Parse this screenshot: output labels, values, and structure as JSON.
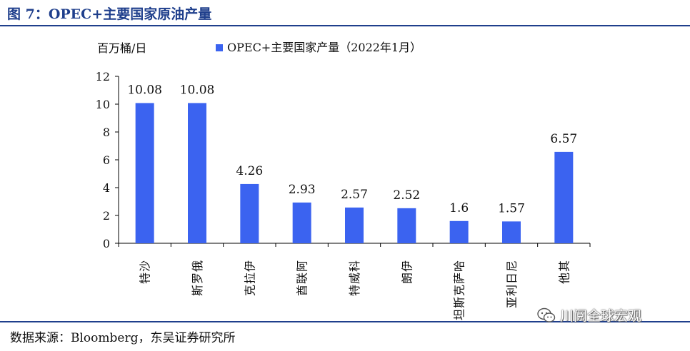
{
  "figure": {
    "title": "图 7：OPEC+主要国家原油产量",
    "source": "数据来源：Bloomberg，东吴证券研究所"
  },
  "watermark": {
    "text": "川阅全球宏观",
    "icon": "wechat-icon"
  },
  "colors": {
    "bar": "#3b63f0",
    "title": "#1f3f8c",
    "axis": "#000000"
  },
  "chart_data": {
    "type": "bar",
    "title": "",
    "unit_label": "百万桶/日",
    "xlabel": "",
    "ylabel": "百万桶/日",
    "ylim": [
      0,
      12
    ],
    "yticks": [
      0,
      2,
      4,
      6,
      8,
      10,
      12
    ],
    "legend": "top-center",
    "grid": false,
    "categories": [
      "沙特",
      "俄罗斯",
      "伊拉克",
      "阿联酋",
      "科威特",
      "伊朗",
      "哈萨克斯坦",
      "尼日利亚",
      "其他"
    ],
    "series": [
      {
        "name": "OPEC+主要国家产量（2022年1月）",
        "values": [
          10.08,
          10.08,
          4.26,
          2.93,
          2.57,
          2.52,
          1.6,
          1.57,
          6.57
        ],
        "labels": [
          "10.08",
          "10.08",
          "4.26",
          "2.93",
          "2.57",
          "2.52",
          "1.6",
          "1.57",
          "6.57"
        ]
      }
    ]
  }
}
